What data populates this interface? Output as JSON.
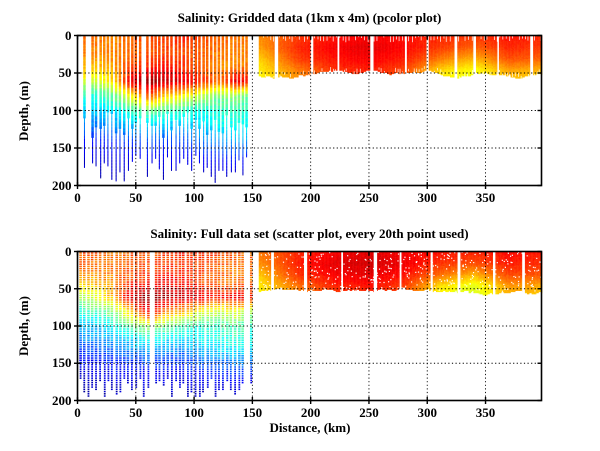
{
  "figure": {
    "background": "#ffffff",
    "axis_color": "#000000",
    "grid_style": "dotted"
  },
  "chart_data": {
    "type": [
      "pcolor",
      "scatter"
    ],
    "colormap": "jet",
    "palette": {
      "deep_blue": "#00008f",
      "blue": "#0000ff",
      "cyan": "#00ffff",
      "green": "#00ff00",
      "yellow": "#ffff00",
      "orange": "#ff8000",
      "red": "#ff0000",
      "dark_red": "#800000"
    },
    "panels": [
      {
        "id": "gridded",
        "type": "pcolor",
        "title": "Salinity: Gridded data (1km x 4m) (pcolor plot)",
        "ylabel": "Depth, (m)",
        "xlabel": "",
        "xlim": [
          0,
          398
        ],
        "ylim": [
          0,
          200
        ],
        "y_inverted": true,
        "xticks": [
          0,
          50,
          100,
          150,
          200,
          250,
          300,
          350
        ],
        "yticks": [
          0,
          50,
          100,
          150,
          200
        ],
        "grid": true,
        "field_left": {
          "xs": [
            0,
            15,
            30,
            45,
            60,
            75,
            90,
            105,
            120,
            135,
            152
          ],
          "depths": [
            0,
            20,
            40,
            60,
            80,
            100,
            120,
            140,
            160,
            180,
            200
          ],
          "values": [
            [
              0.78,
              0.76,
              0.74,
              0.78,
              0.8,
              0.82,
              0.84,
              0.8,
              0.78,
              0.76,
              0.76
            ],
            [
              0.76,
              0.74,
              0.74,
              0.77,
              0.79,
              0.8,
              0.8,
              0.78,
              0.76,
              0.74,
              0.75
            ],
            [
              0.7,
              0.68,
              0.72,
              0.8,
              0.84,
              0.86,
              0.82,
              0.78,
              0.73,
              0.74,
              0.76
            ],
            [
              0.6,
              0.58,
              0.66,
              0.9,
              0.97,
              0.93,
              0.9,
              0.84,
              0.76,
              0.9,
              0.82
            ],
            [
              0.42,
              0.4,
              0.48,
              0.62,
              0.78,
              0.66,
              0.62,
              0.56,
              0.5,
              0.52,
              0.45
            ],
            [
              0.34,
              0.32,
              0.35,
              0.42,
              0.48,
              0.44,
              0.42,
              0.38,
              0.42,
              0.44,
              0.38
            ],
            [
              0.24,
              0.24,
              0.27,
              0.31,
              0.34,
              0.32,
              0.31,
              0.34,
              0.37,
              0.39,
              0.37
            ],
            [
              0.14,
              0.14,
              0.17,
              0.19,
              0.21,
              0.19,
              0.19,
              0.24,
              0.27,
              0.29,
              0.27
            ],
            [
              0.09,
              0.09,
              0.11,
              0.12,
              0.13,
              0.12,
              0.12,
              0.14,
              0.16,
              0.17,
              0.16
            ],
            [
              0.06,
              0.06,
              0.07,
              0.07,
              0.08,
              0.07,
              0.07,
              0.08,
              0.09,
              0.09,
              0.09
            ],
            [
              0.04,
              0.04,
              0.04,
              0.04,
              0.05,
              0.04,
              0.04,
              0.05,
              0.05,
              0.05,
              0.05
            ]
          ]
        },
        "field_right": {
          "xs": [
            155,
            190,
            220,
            250,
            280,
            310,
            340,
            370,
            398
          ],
          "depths": [
            0,
            15,
            30,
            45,
            58
          ],
          "values": [
            [
              0.74,
              0.82,
              0.86,
              0.88,
              0.86,
              0.84,
              0.82,
              0.86,
              0.84
            ],
            [
              0.72,
              0.84,
              0.88,
              0.9,
              0.87,
              0.82,
              0.78,
              0.84,
              0.82
            ],
            [
              0.67,
              0.82,
              0.86,
              0.88,
              0.85,
              0.76,
              0.7,
              0.8,
              0.78
            ],
            [
              0.64,
              0.76,
              0.83,
              0.85,
              0.81,
              0.67,
              0.62,
              0.72,
              0.7
            ],
            [
              0.62,
              0.73,
              0.8,
              0.82,
              0.78,
              0.62,
              0.6,
              0.68,
              0.66
            ]
          ]
        },
        "texture": {
          "seed": 7,
          "left": {
            "x_start": 1.5,
            "x_end": 151,
            "period": 3.4,
            "width": 2.1,
            "skip": 0.1,
            "noise": 0.05,
            "bottom_min": 158,
            "bottom_max": 196,
            "narrow_min": 100,
            "narrow_max": 135,
            "narrow_factor": 0.42
          },
          "right": {
            "x_start": 155.5,
            "bottom_base": 52,
            "noise": 0.025,
            "gap_min": 16,
            "gap_max": 34,
            "gap_w_min": 1.2,
            "gap_w_max": 3.0,
            "top_comb": true,
            "speckle": 0
          }
        }
      },
      {
        "id": "full",
        "type": "scatter",
        "title": "Salinity: Full data set (scatter plot, every 20th point used)",
        "ylabel": "Depth, (m)",
        "xlabel": "Distance, (km)",
        "xlim": [
          0,
          398
        ],
        "ylim": [
          0,
          200
        ],
        "y_inverted": true,
        "xticks": [
          0,
          50,
          100,
          150,
          200,
          250,
          300,
          350
        ],
        "yticks": [
          0,
          50,
          100,
          150,
          200
        ],
        "grid": true,
        "field_left": {
          "xs": [
            0,
            15,
            30,
            45,
            60,
            75,
            90,
            105,
            120,
            135,
            152
          ],
          "depths": [
            0,
            20,
            40,
            60,
            80,
            100,
            120,
            140,
            160,
            180,
            200
          ],
          "values": [
            [
              0.8,
              0.78,
              0.76,
              0.78,
              0.8,
              0.82,
              0.84,
              0.82,
              0.8,
              0.78,
              0.78
            ],
            [
              0.77,
              0.76,
              0.75,
              0.78,
              0.8,
              0.81,
              0.82,
              0.8,
              0.78,
              0.76,
              0.76
            ],
            [
              0.68,
              0.7,
              0.74,
              0.82,
              0.86,
              0.88,
              0.85,
              0.8,
              0.76,
              0.75,
              0.76
            ],
            [
              0.55,
              0.6,
              0.7,
              0.92,
              0.98,
              0.96,
              0.93,
              0.9,
              0.85,
              0.9,
              0.86
            ],
            [
              0.4,
              0.44,
              0.52,
              0.68,
              0.88,
              0.74,
              0.68,
              0.6,
              0.56,
              0.6,
              0.52
            ],
            [
              0.32,
              0.33,
              0.37,
              0.46,
              0.54,
              0.48,
              0.45,
              0.41,
              0.44,
              0.46,
              0.41
            ],
            [
              0.24,
              0.25,
              0.29,
              0.33,
              0.37,
              0.34,
              0.33,
              0.36,
              0.39,
              0.41,
              0.39
            ],
            [
              0.14,
              0.15,
              0.19,
              0.21,
              0.24,
              0.21,
              0.21,
              0.26,
              0.29,
              0.31,
              0.29
            ],
            [
              0.09,
              0.09,
              0.12,
              0.13,
              0.14,
              0.13,
              0.13,
              0.16,
              0.17,
              0.19,
              0.17
            ],
            [
              0.06,
              0.06,
              0.07,
              0.08,
              0.09,
              0.08,
              0.08,
              0.09,
              0.1,
              0.1,
              0.09
            ],
            [
              0.04,
              0.04,
              0.04,
              0.05,
              0.05,
              0.04,
              0.04,
              0.05,
              0.05,
              0.05,
              0.05
            ]
          ]
        },
        "field_right": {
          "xs": [
            155,
            190,
            220,
            250,
            280,
            310,
            340,
            370,
            398
          ],
          "depths": [
            0,
            15,
            30,
            45,
            58
          ],
          "values": [
            [
              0.76,
              0.84,
              0.88,
              0.9,
              0.88,
              0.86,
              0.84,
              0.87,
              0.85
            ],
            [
              0.73,
              0.85,
              0.9,
              0.92,
              0.89,
              0.83,
              0.8,
              0.85,
              0.83
            ],
            [
              0.68,
              0.83,
              0.88,
              0.9,
              0.86,
              0.77,
              0.7,
              0.81,
              0.79
            ],
            [
              0.64,
              0.77,
              0.84,
              0.86,
              0.82,
              0.66,
              0.6,
              0.73,
              0.71
            ],
            [
              0.62,
              0.73,
              0.81,
              0.83,
              0.79,
              0.61,
              0.58,
              0.69,
              0.67
            ]
          ]
        },
        "texture": {
          "seed": 13,
          "left": {
            "x_start": 1.5,
            "x_end": 151,
            "period": 3.4,
            "width": 2.2,
            "skip": 0.1,
            "noise": 0.07,
            "dot_step": 3.0,
            "dot_h": 1.5,
            "bottom_min": 170,
            "bottom_max": 196
          },
          "right": {
            "x_start": 155.5,
            "bottom_base": 54,
            "noise": 0.03,
            "gap_min": 20,
            "gap_max": 32,
            "gap_w_min": 1.5,
            "gap_w_max": 3.0,
            "top_comb": false,
            "speckle": 420
          }
        }
      }
    ]
  }
}
